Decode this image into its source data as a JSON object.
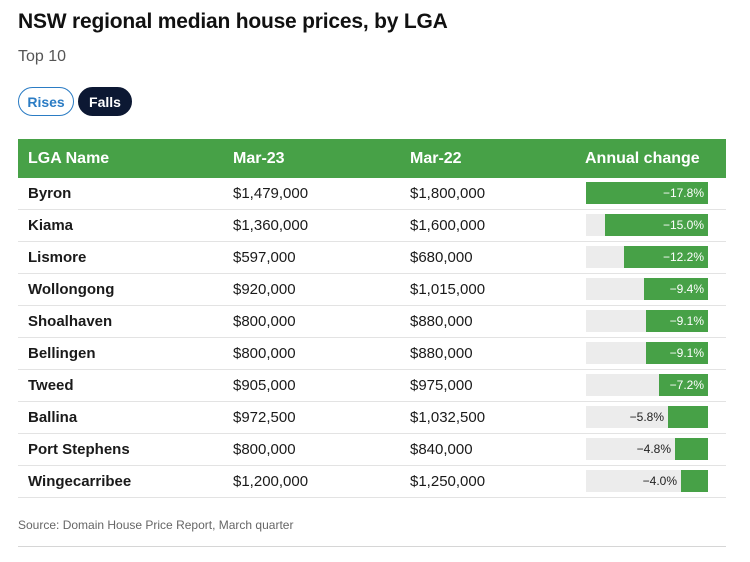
{
  "title": "NSW regional median house prices, by LGA",
  "subtitle": "Top 10",
  "toggles": {
    "rises": "Rises",
    "falls": "Falls"
  },
  "columns": [
    "LGA Name",
    "Mar-23",
    "Mar-22",
    "Annual change"
  ],
  "source": "Source: Domain House Price Report, March quarter",
  "colors": {
    "header": "#47a147",
    "bar": "#47a147",
    "track": "#ececec",
    "active_toggle": "#0c1833",
    "inactive_toggle": "#2b7cc4"
  },
  "chart_data": {
    "type": "table",
    "title": "NSW regional median house prices, by LGA",
    "subtitle": "Top 10",
    "columns": [
      "LGA Name",
      "Mar-23",
      "Mar-22",
      "Annual change"
    ],
    "rows": [
      {
        "lga": "Byron",
        "mar23": "$1,479,000",
        "mar22": "$1,800,000",
        "change": -17.8,
        "change_label": "−17.8%"
      },
      {
        "lga": "Kiama",
        "mar23": "$1,360,000",
        "mar22": "$1,600,000",
        "change": -15.0,
        "change_label": "−15.0%"
      },
      {
        "lga": "Lismore",
        "mar23": "$597,000",
        "mar22": "$680,000",
        "change": -12.2,
        "change_label": "−12.2%"
      },
      {
        "lga": "Wollongong",
        "mar23": "$920,000",
        "mar22": "$1,015,000",
        "change": -9.4,
        "change_label": "−9.4%"
      },
      {
        "lga": "Shoalhaven",
        "mar23": "$800,000",
        "mar22": "$880,000",
        "change": -9.1,
        "change_label": "−9.1%"
      },
      {
        "lga": "Bellingen",
        "mar23": "$800,000",
        "mar22": "$880,000",
        "change": -9.1,
        "change_label": "−9.1%"
      },
      {
        "lga": "Tweed",
        "mar23": "$905,000",
        "mar22": "$975,000",
        "change": -7.2,
        "change_label": "−7.2%"
      },
      {
        "lga": "Ballina",
        "mar23": "$972,500",
        "mar22": "$1,032,500",
        "change": -5.8,
        "change_label": "−5.8%"
      },
      {
        "lga": "Port Stephens",
        "mar23": "$800,000",
        "mar22": "$840,000",
        "change": -4.8,
        "change_label": "−4.8%"
      },
      {
        "lga": "Wingecarribee",
        "mar23": "$1,200,000",
        "mar22": "$1,250,000",
        "change": -4.0,
        "change_label": "−4.0%"
      }
    ],
    "bar_max_abs": 17.8
  }
}
